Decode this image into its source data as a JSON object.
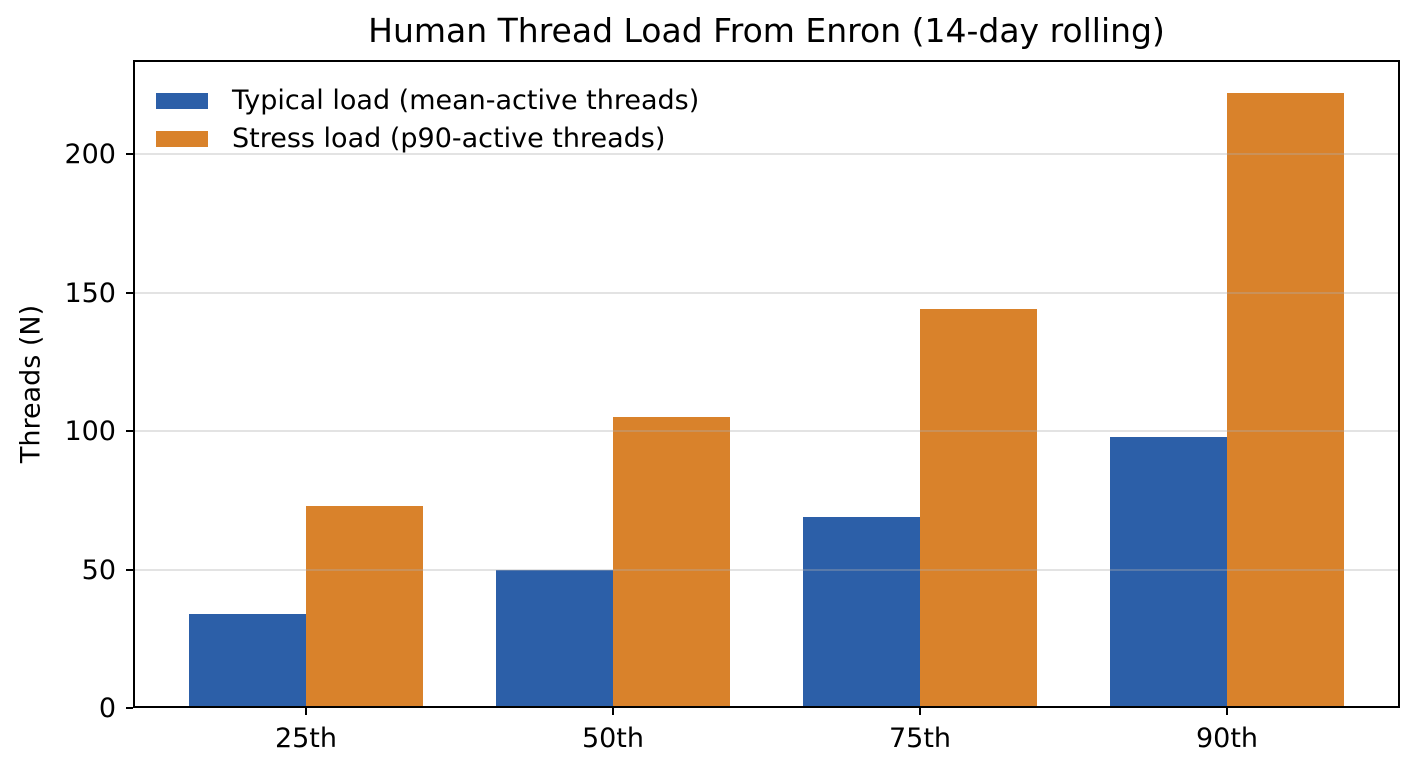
{
  "chart_data": {
    "type": "bar",
    "title": "Human Thread Load From Enron (14-day rolling)",
    "xlabel": "",
    "ylabel": "Threads (N)",
    "categories": [
      "25th",
      "50th",
      "75th",
      "90th"
    ],
    "series": [
      {
        "name": "Typical load (mean-active threads)",
        "color": "#2c5fa8",
        "values": [
          34,
          50,
          69,
          98
        ]
      },
      {
        "name": "Stress load (p90-active threads)",
        "color": "#d9822b",
        "values": [
          73,
          105,
          144,
          222
        ]
      }
    ],
    "ylim": [
      0,
      234
    ],
    "yticks": [
      0,
      50,
      100,
      150,
      200
    ],
    "grid": "horizontal-over-bars",
    "legend_position": "upper-left",
    "bar_width_fraction": 0.38,
    "x_margin_units": 0.5635
  },
  "colors": {
    "background": "#ffffff",
    "spine": "#000000",
    "grid": "rgba(176,176,176,0.35)",
    "text": "#000000"
  }
}
